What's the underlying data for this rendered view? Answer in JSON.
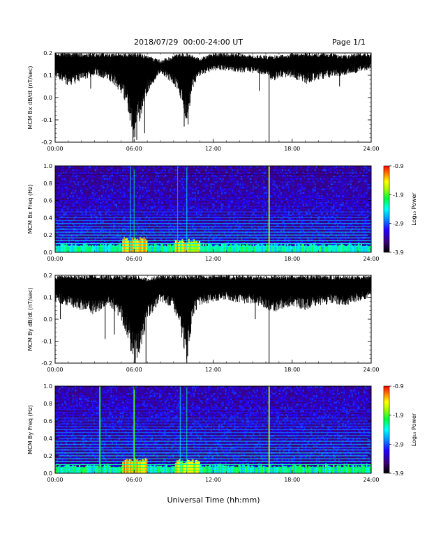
{
  "header": {
    "title": "2018/07/29  00:00-24:00 UT",
    "page": "Page 1/1"
  },
  "footer": {
    "xlabel": "Universal Time (hh:mm)"
  },
  "colors": {
    "trace": "#000000",
    "colormap": [
      "#000000",
      "#3a0075",
      "#2200ff",
      "#00a0ff",
      "#00ffff",
      "#00ff40",
      "#b0ff00",
      "#ffff00",
      "#ff8000",
      "#ff0000"
    ]
  },
  "chart_data": [
    {
      "id": "bx-ddt",
      "type": "line",
      "ylabel": "MCM Bx dB/dt (nT/sec)",
      "xlim": [
        "00:00",
        "24:00"
      ],
      "ylim": [
        -0.2,
        0.2
      ],
      "x_ticks": [
        "00:00",
        "06:00",
        "12:00",
        "18:00",
        "24:00"
      ],
      "y_ticks": [
        "-0.2",
        "-0.1",
        "0.0",
        "0.1",
        "0.2"
      ],
      "envelope": {
        "x_hours": [
          0,
          1,
          2,
          3,
          4,
          5,
          5.5,
          6,
          6.5,
          7,
          8,
          9,
          9.5,
          10,
          10.5,
          11,
          12,
          13,
          14,
          15,
          16,
          16.5,
          17,
          18,
          19,
          20,
          21,
          22,
          23,
          24
        ],
        "upper": [
          0.2,
          0.2,
          0.2,
          0.2,
          0.2,
          0.2,
          0.2,
          0.2,
          0.2,
          0.19,
          0.17,
          0.19,
          0.2,
          0.2,
          0.19,
          0.18,
          0.2,
          0.2,
          0.2,
          0.19,
          0.19,
          0.19,
          0.19,
          0.2,
          0.2,
          0.2,
          0.2,
          0.19,
          0.2,
          0.2
        ],
        "lower": [
          0.09,
          0.05,
          0.07,
          0.1,
          0.08,
          0.02,
          -0.05,
          -0.2,
          -0.1,
          0.02,
          0.11,
          0.06,
          0.0,
          -0.12,
          0.05,
          0.1,
          0.12,
          0.12,
          0.11,
          0.11,
          0.1,
          0.07,
          0.09,
          0.09,
          0.06,
          0.08,
          0.09,
          0.1,
          0.11,
          0.13
        ]
      },
      "spikes": [
        {
          "x_hours": 2.7,
          "y": 0.04
        },
        {
          "x_hours": 5.9,
          "y": -0.2
        },
        {
          "x_hours": 6.2,
          "y": -0.19
        },
        {
          "x_hours": 6.8,
          "y": -0.16
        },
        {
          "x_hours": 9.8,
          "y": -0.13
        },
        {
          "x_hours": 10.1,
          "y": -0.12
        },
        {
          "x_hours": 16.25,
          "y": -0.2
        },
        {
          "x_hours": 15.5,
          "y": 0.03
        },
        {
          "x_hours": 21.6,
          "y": 0.05
        }
      ]
    },
    {
      "id": "bx-spec",
      "type": "heatmap",
      "ylabel": "MCM Bx Freq (Hz)",
      "colorbar_label": "Log₁₀ Power",
      "clim": [
        -3.9,
        -0.9
      ],
      "colorbar_ticks": [
        "-0.9",
        "-1.9",
        "-2.9",
        "-3.9"
      ],
      "xlim": [
        "00:00",
        "24:00"
      ],
      "ylim": [
        0.0,
        1.0
      ],
      "x_ticks": [
        "00:00",
        "06:00",
        "12:00",
        "18:00",
        "24:00"
      ],
      "y_ticks": [
        "0.0",
        "0.2",
        "0.4",
        "0.6",
        "0.8",
        "1.0"
      ],
      "harmonic_lines_hz": [
        0.033,
        0.067,
        0.1,
        0.133,
        0.167,
        0.2,
        0.233,
        0.267,
        0.3,
        0.333,
        0.367,
        0.4,
        0.433,
        0.467,
        0.5,
        0.533,
        0.567,
        0.6,
        0.633,
        0.667,
        0.7,
        0.733,
        0.767,
        0.8,
        0.833,
        0.867,
        0.9,
        0.933,
        0.967,
        1.0
      ],
      "harmonic_levels": [
        -2.4,
        -2.5,
        -2.6,
        -2.6,
        -2.7,
        -2.7,
        -2.8,
        -2.8,
        -2.9,
        -2.9,
        -3.0,
        -3.0,
        -3.1,
        -3.1,
        -3.2,
        -3.2,
        -3.3,
        -3.3,
        -3.3,
        -3.4,
        -3.4,
        -3.4,
        -3.5,
        -3.5,
        -3.5,
        -3.5,
        -3.6,
        -3.6,
        -3.6,
        -3.6
      ],
      "broadband_events": [
        {
          "x_hours": 16.25,
          "level": -1.9
        },
        {
          "x_hours": 6.0,
          "level": -2.3
        },
        {
          "x_hours": 5.7,
          "level": -2.6
        },
        {
          "x_hours": 10.0,
          "level": -2.6
        },
        {
          "x_hours": 9.3,
          "level": -2.8
        }
      ]
    },
    {
      "id": "by-ddt",
      "type": "line",
      "ylabel": "MCM By dB/dt (nT/sec)",
      "xlim": [
        "00:00",
        "24:00"
      ],
      "ylim": [
        -0.2,
        0.2
      ],
      "x_ticks": [
        "00:00",
        "06:00",
        "12:00",
        "18:00",
        "24:00"
      ],
      "y_ticks": [
        "-0.2",
        "-0.1",
        "0.0",
        "0.1",
        "0.2"
      ],
      "envelope": {
        "x_hours": [
          0,
          1,
          2,
          3,
          4,
          5,
          5.5,
          6,
          6.5,
          7,
          8,
          9,
          9.5,
          10,
          10.5,
          11,
          12,
          13,
          14,
          15,
          16,
          16.5,
          17,
          18,
          19,
          20,
          21,
          22,
          23,
          24
        ],
        "upper": [
          0.2,
          0.2,
          0.2,
          0.2,
          0.2,
          0.2,
          0.2,
          0.2,
          0.2,
          0.19,
          0.2,
          0.2,
          0.2,
          0.2,
          0.2,
          0.2,
          0.2,
          0.2,
          0.2,
          0.2,
          0.2,
          0.2,
          0.2,
          0.2,
          0.2,
          0.2,
          0.2,
          0.2,
          0.2,
          0.2
        ],
        "lower": [
          0.08,
          0.06,
          0.04,
          0.02,
          0.07,
          0.0,
          -0.1,
          -0.2,
          -0.15,
          0.0,
          0.08,
          0.05,
          -0.05,
          -0.2,
          0.02,
          0.06,
          0.08,
          0.09,
          0.07,
          0.07,
          0.05,
          0.03,
          0.04,
          0.06,
          0.04,
          0.06,
          0.07,
          0.06,
          0.08,
          0.1
        ]
      },
      "spikes": [
        {
          "x_hours": 0.4,
          "y": 0.0
        },
        {
          "x_hours": 3.8,
          "y": -0.09
        },
        {
          "x_hours": 4.5,
          "y": -0.07
        },
        {
          "x_hours": 6.1,
          "y": -0.2
        },
        {
          "x_hours": 6.9,
          "y": -0.2
        },
        {
          "x_hours": 10.0,
          "y": -0.2
        },
        {
          "x_hours": 16.25,
          "y": -0.2
        },
        {
          "x_hours": 15.2,
          "y": 0.0
        }
      ]
    },
    {
      "id": "by-spec",
      "type": "heatmap",
      "ylabel": "MCM By Freq (Hz)",
      "colorbar_label": "Log₁₀ Power",
      "clim": [
        -3.9,
        -0.9
      ],
      "colorbar_ticks": [
        "-0.9",
        "-1.9",
        "-2.9",
        "-3.9"
      ],
      "xlim": [
        "00:00",
        "24:00"
      ],
      "ylim": [
        0.0,
        1.0
      ],
      "x_ticks": [
        "00:00",
        "06:00",
        "12:00",
        "18:00",
        "24:00"
      ],
      "y_ticks": [
        "0.0",
        "0.2",
        "0.4",
        "0.6",
        "0.8",
        "1.0"
      ],
      "harmonic_lines_hz": [
        0.033,
        0.067,
        0.1,
        0.133,
        0.167,
        0.2,
        0.233,
        0.267,
        0.3,
        0.333,
        0.367,
        0.4,
        0.433,
        0.467,
        0.5,
        0.533,
        0.567,
        0.6,
        0.633,
        0.667,
        0.7,
        0.733,
        0.767,
        0.8,
        0.833,
        0.867,
        0.9,
        0.933,
        0.967,
        1.0
      ],
      "harmonic_levels": [
        -2.2,
        -2.3,
        -2.4,
        -2.5,
        -2.5,
        -2.6,
        -2.6,
        -2.7,
        -2.7,
        -2.8,
        -2.8,
        -2.9,
        -2.9,
        -3.0,
        -3.0,
        -3.0,
        -3.1,
        -3.1,
        -3.1,
        -3.2,
        -3.2,
        -3.2,
        -3.3,
        -3.3,
        -3.3,
        -3.3,
        -3.4,
        -3.4,
        -3.4,
        -3.4
      ],
      "broadband_events": [
        {
          "x_hours": 16.25,
          "level": -1.9
        },
        {
          "x_hours": 3.4,
          "level": -2.2
        },
        {
          "x_hours": 6.0,
          "level": -2.1
        },
        {
          "x_hours": 10.0,
          "level": -2.4
        },
        {
          "x_hours": 9.5,
          "level": -2.6
        }
      ]
    }
  ]
}
